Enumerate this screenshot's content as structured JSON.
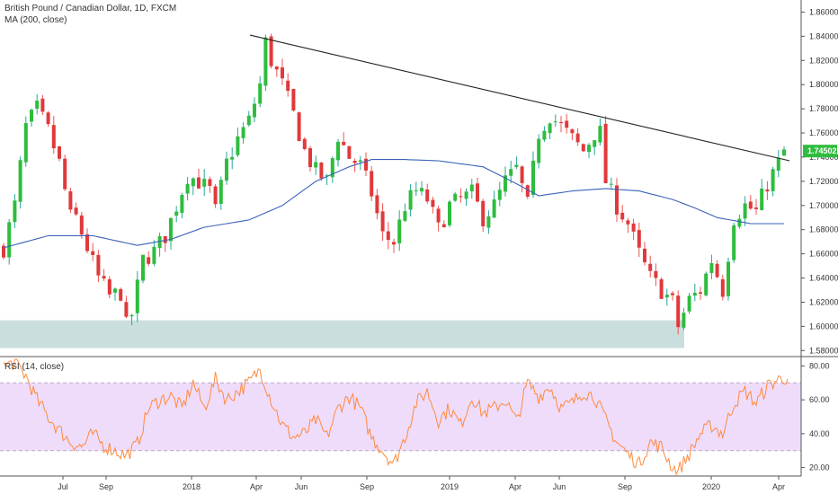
{
  "legend": {
    "main": "British Pound / Canadian Dollar, 1D, FXCM",
    "ma": "MA (200, close)",
    "rsi": "RSI (14, close)"
  },
  "price_badge": "1.74502",
  "colors": {
    "up": "#26a69a",
    "up_body": "#2ebd3d",
    "down": "#ef5350",
    "down_body": "#e0393b",
    "ma": "#3a63b8",
    "trendline": "#222222",
    "support_zone": "#b9d3d3",
    "rsi": "#ff8a3d",
    "rsi_band": "#efdcfb",
    "badge": "#2ebd3d"
  },
  "chart_data": [
    {
      "type": "candlestick",
      "title": "British Pound / Canadian Dollar, 1D, FXCM",
      "ylim": [
        1.575,
        1.87
      ],
      "price_ticks": [
        "1.86000",
        "1.84000",
        "1.82000",
        "1.80000",
        "1.78000",
        "1.76000",
        "1.74000",
        "1.72000",
        "1.70000",
        "1.68000",
        "1.66000",
        "1.64000",
        "1.62000",
        "1.60000",
        "1.58000"
      ],
      "x_ticks": [
        "Jul",
        "Sep",
        "2018",
        "Apr",
        "Jun",
        "Sep",
        "2019",
        "Apr",
        "Jun",
        "Sep",
        "2020",
        "Apr"
      ],
      "last_price": 1.74502,
      "close_path": [
        [
          0,
          1.665
        ],
        [
          2,
          1.7
        ],
        [
          4,
          1.765
        ],
        [
          6,
          1.78
        ],
        [
          8,
          1.762
        ],
        [
          10,
          1.735
        ],
        [
          12,
          1.69
        ],
        [
          13,
          1.69
        ],
        [
          15,
          1.665
        ],
        [
          17,
          1.64
        ],
        [
          19,
          1.625
        ],
        [
          21,
          1.628
        ],
        [
          22,
          1.6
        ],
        [
          23,
          1.61
        ],
        [
          25,
          1.655
        ],
        [
          27,
          1.662
        ],
        [
          29,
          1.675
        ],
        [
          31,
          1.7
        ],
        [
          33,
          1.725
        ],
        [
          35,
          1.72
        ],
        [
          37,
          1.712
        ],
        [
          38,
          1.695
        ],
        [
          40,
          1.735
        ],
        [
          42,
          1.755
        ],
        [
          44,
          1.77
        ],
        [
          46,
          1.8
        ],
        [
          47,
          1.835
        ],
        [
          48,
          1.82
        ],
        [
          50,
          1.8
        ],
        [
          52,
          1.775
        ],
        [
          54,
          1.745
        ],
        [
          56,
          1.728
        ],
        [
          58,
          1.72
        ],
        [
          60,
          1.758
        ],
        [
          62,
          1.74
        ],
        [
          64,
          1.733
        ],
        [
          66,
          1.71
        ],
        [
          68,
          1.675
        ],
        [
          70,
          1.67
        ],
        [
          72,
          1.7
        ],
        [
          74,
          1.712
        ],
        [
          76,
          1.705
        ],
        [
          78,
          1.68
        ],
        [
          80,
          1.7
        ],
        [
          82,
          1.705
        ],
        [
          84,
          1.71
        ],
        [
          86,
          1.69
        ],
        [
          88,
          1.7
        ],
        [
          90,
          1.72
        ],
        [
          92,
          1.73
        ],
        [
          94,
          1.7
        ],
        [
          96,
          1.76
        ],
        [
          98,
          1.775
        ],
        [
          100,
          1.765
        ],
        [
          102,
          1.755
        ],
        [
          104,
          1.745
        ],
        [
          106,
          1.76
        ],
        [
          107,
          1.76
        ],
        [
          108,
          1.72
        ],
        [
          110,
          1.7
        ],
        [
          112,
          1.685
        ],
        [
          114,
          1.66
        ],
        [
          116,
          1.64
        ],
        [
          118,
          1.63
        ],
        [
          120,
          1.62
        ],
        [
          121,
          1.6
        ],
        [
          123,
          1.622
        ],
        [
          125,
          1.63
        ],
        [
          127,
          1.655
        ],
        [
          129,
          1.63
        ],
        [
          131,
          1.69
        ],
        [
          133,
          1.7
        ],
        [
          135,
          1.695
        ],
        [
          137,
          1.718
        ],
        [
          139,
          1.735
        ],
        [
          140,
          1.745
        ]
      ]
    },
    {
      "type": "line",
      "title": "MA (200, close)",
      "points": [
        [
          0,
          1.665
        ],
        [
          8,
          1.675
        ],
        [
          16,
          1.675
        ],
        [
          24,
          1.667
        ],
        [
          30,
          1.672
        ],
        [
          36,
          1.682
        ],
        [
          44,
          1.688
        ],
        [
          50,
          1.7
        ],
        [
          56,
          1.72
        ],
        [
          62,
          1.732
        ],
        [
          66,
          1.738
        ],
        [
          72,
          1.738
        ],
        [
          78,
          1.737
        ],
        [
          86,
          1.732
        ],
        [
          92,
          1.718
        ],
        [
          96,
          1.708
        ],
        [
          102,
          1.712
        ],
        [
          108,
          1.714
        ],
        [
          114,
          1.712
        ],
        [
          120,
          1.705
        ],
        [
          124,
          1.698
        ],
        [
          128,
          1.69
        ],
        [
          134,
          1.685
        ],
        [
          140,
          1.685
        ]
      ]
    },
    {
      "type": "line",
      "title": "RSI (14, close)",
      "ylim": [
        15,
        85
      ],
      "y_ticks": [
        "80.00",
        "60.00",
        "40.00",
        "20.00"
      ],
      "band": [
        30,
        70
      ],
      "points": [
        [
          0,
          80
        ],
        [
          2,
          82
        ],
        [
          4,
          74
        ],
        [
          6,
          60
        ],
        [
          8,
          50
        ],
        [
          10,
          42
        ],
        [
          12,
          35
        ],
        [
          14,
          32
        ],
        [
          16,
          40
        ],
        [
          18,
          33
        ],
        [
          20,
          30
        ],
        [
          22,
          27
        ],
        [
          24,
          34
        ],
        [
          26,
          55
        ],
        [
          28,
          60
        ],
        [
          30,
          62
        ],
        [
          32,
          55
        ],
        [
          34,
          70
        ],
        [
          36,
          55
        ],
        [
          38,
          72
        ],
        [
          40,
          60
        ],
        [
          42,
          65
        ],
        [
          44,
          70
        ],
        [
          46,
          78
        ],
        [
          48,
          60
        ],
        [
          50,
          45
        ],
        [
          52,
          38
        ],
        [
          54,
          40
        ],
        [
          56,
          48
        ],
        [
          58,
          38
        ],
        [
          60,
          55
        ],
        [
          62,
          62
        ],
        [
          64,
          55
        ],
        [
          66,
          38
        ],
        [
          68,
          30
        ],
        [
          70,
          22
        ],
        [
          72,
          38
        ],
        [
          74,
          58
        ],
        [
          76,
          65
        ],
        [
          78,
          48
        ],
        [
          80,
          55
        ],
        [
          82,
          45
        ],
        [
          84,
          62
        ],
        [
          86,
          52
        ],
        [
          88,
          55
        ],
        [
          90,
          60
        ],
        [
          92,
          47
        ],
        [
          94,
          70
        ],
        [
          96,
          62
        ],
        [
          98,
          68
        ],
        [
          100,
          55
        ],
        [
          102,
          58
        ],
        [
          104,
          65
        ],
        [
          106,
          62
        ],
        [
          108,
          48
        ],
        [
          110,
          35
        ],
        [
          112,
          28
        ],
        [
          114,
          22
        ],
        [
          116,
          35
        ],
        [
          118,
          32
        ],
        [
          120,
          20
        ],
        [
          121,
          18
        ],
        [
          123,
          28
        ],
        [
          125,
          40
        ],
        [
          127,
          45
        ],
        [
          129,
          40
        ],
        [
          131,
          58
        ],
        [
          133,
          65
        ],
        [
          135,
          58
        ],
        [
          137,
          68
        ],
        [
          139,
          72
        ],
        [
          140,
          73
        ]
      ]
    }
  ]
}
